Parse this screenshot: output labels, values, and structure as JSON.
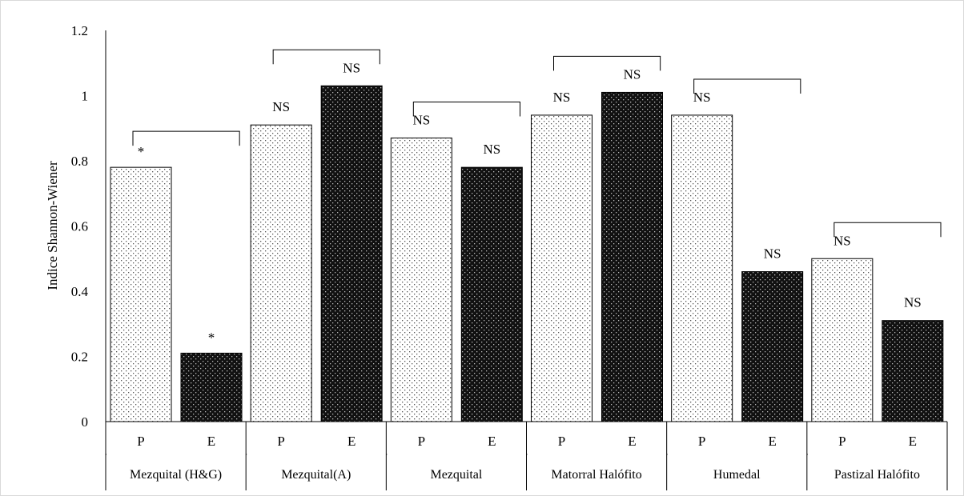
{
  "chart_data": {
    "type": "bar",
    "title": "",
    "ylabel": "Indice Shannon-Wiener",
    "xlabel": "",
    "ylim": [
      0,
      1.2
    ],
    "yticks": [
      "0",
      "0.2",
      "0.4",
      "0.6",
      "0.8",
      "1",
      "1.2"
    ],
    "grid": false,
    "legend": "none",
    "series_patterns": {
      "P": {
        "pattern": "light-dotted",
        "fill": "#ffffff",
        "dot": "#555555"
      },
      "E": {
        "pattern": "dark-dotted",
        "fill": "#111111",
        "dot": "#bbbbbb"
      }
    },
    "groups": [
      {
        "name": "Mezquital (H&G)",
        "bars": [
          {
            "sub": "P",
            "value": 0.78,
            "label": "*"
          },
          {
            "sub": "E",
            "value": 0.21,
            "label": "*"
          }
        ]
      },
      {
        "name": "Mezquital(A)",
        "bars": [
          {
            "sub": "P",
            "value": 0.91,
            "label": "NS"
          },
          {
            "sub": "E",
            "value": 1.03,
            "label": "NS"
          }
        ]
      },
      {
        "name": "Mezquital",
        "bars": [
          {
            "sub": "P",
            "value": 0.87,
            "label": "NS"
          },
          {
            "sub": "E",
            "value": 0.78,
            "label": "NS"
          }
        ]
      },
      {
        "name": "Matorral Halófito",
        "bars": [
          {
            "sub": "P",
            "value": 0.94,
            "label": "NS"
          },
          {
            "sub": "E",
            "value": 1.01,
            "label": "NS"
          }
        ]
      },
      {
        "name": "Humedal",
        "bars": [
          {
            "sub": "P",
            "value": 0.94,
            "label": "NS"
          },
          {
            "sub": "E",
            "value": 0.46,
            "label": "NS"
          }
        ]
      },
      {
        "name": "Pastizal Halófito",
        "bars": [
          {
            "sub": "P",
            "value": 0.5,
            "label": "NS"
          },
          {
            "sub": "E",
            "value": 0.31,
            "label": "NS"
          }
        ]
      }
    ]
  }
}
